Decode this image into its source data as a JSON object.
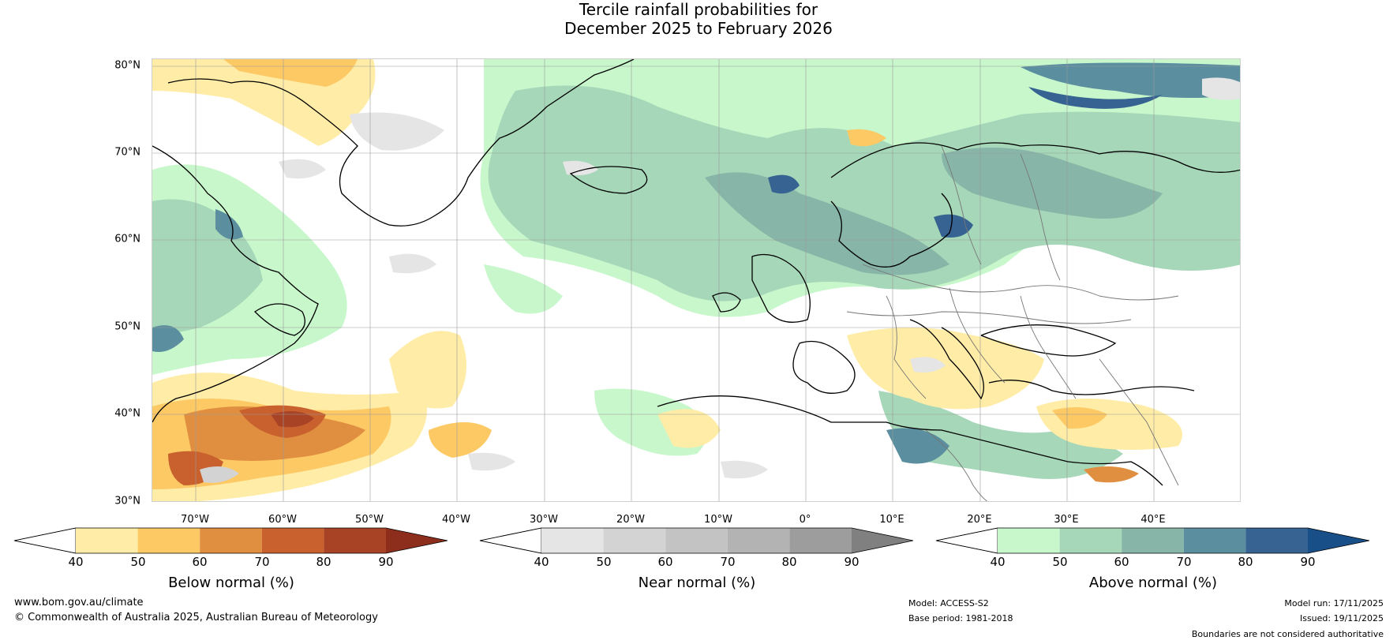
{
  "title": {
    "line1": "Tercile rainfall probabilities for",
    "line2": "December 2025 to February 2026"
  },
  "map": {
    "lat_labels": [
      "80°N",
      "70°N",
      "60°N",
      "50°N",
      "40°N",
      "30°N"
    ],
    "lon_labels": [
      "70°W",
      "60°W",
      "50°W",
      "40°W",
      "30°W",
      "20°W",
      "10°W",
      "0°",
      "10°E",
      "20°E",
      "30°E",
      "40°E"
    ],
    "lat_range": [
      30,
      81
    ],
    "lon_range": [
      -77,
      49
    ]
  },
  "colorbars": [
    {
      "title": "Below normal (%)",
      "ticks": [
        "40",
        "50",
        "60",
        "70",
        "80",
        "90"
      ],
      "colors": [
        "#ffeca6",
        "#fdc964",
        "#e08e40",
        "#c9612f",
        "#a84325",
        "#8c2e1b"
      ]
    },
    {
      "title": "Near normal (%)",
      "ticks": [
        "40",
        "50",
        "60",
        "70",
        "80",
        "90"
      ],
      "colors": [
        "#e5e5e5",
        "#d3d3d3",
        "#c3c3c3",
        "#b3b3b3",
        "#9d9d9d",
        "#808080"
      ]
    },
    {
      "title": "Above normal (%)",
      "ticks": [
        "40",
        "50",
        "60",
        "70",
        "80",
        "90"
      ],
      "colors": [
        "#c7f7cb",
        "#a5d7b8",
        "#87b5a7",
        "#5b8e9f",
        "#366391",
        "#194f88"
      ]
    }
  ],
  "footer": {
    "url": "www.bom.gov.au/climate",
    "copyright": "© Commonwealth of Australia 2025, Australian Bureau of Meteorology",
    "model": "Model: ACCESS-S2",
    "base_period": "Base period: 1981-2018",
    "model_run": "Model run: 17/11/2025",
    "issued": "Issued: 19/11/2025",
    "disclaimer": "Boundaries are not considered authoritative"
  }
}
